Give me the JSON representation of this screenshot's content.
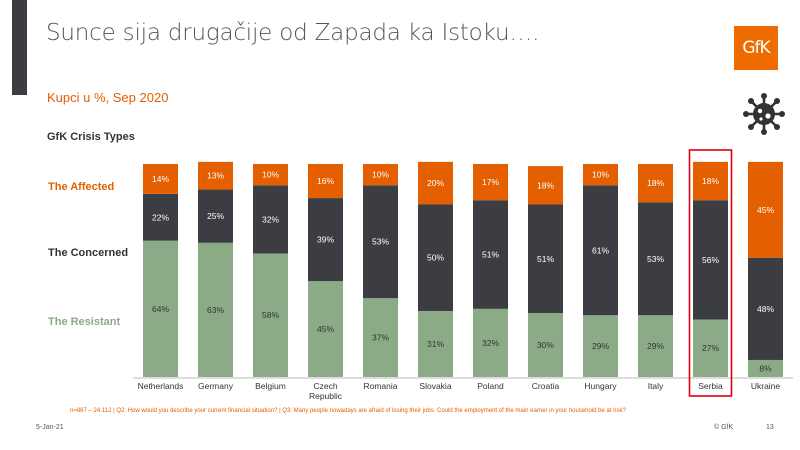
{
  "header": {
    "title": "Sunce sija drugačije od Zapada ka Istoku….",
    "logo_text": "GfK",
    "subtitle": "Kupci u %, Sep 2020",
    "section_label": "GfK Crisis Types"
  },
  "icons": {
    "logo": "gfk-logo",
    "virus": "virus-icon"
  },
  "colors": {
    "affected": "#e35f00",
    "concerned": "#3b3d42",
    "resistant": "#8aab86",
    "highlight": "#e0000f"
  },
  "chart_data": {
    "type": "bar",
    "stacked": true,
    "title": "GfK Crisis Types",
    "categories": [
      "Netherlands",
      "Germany",
      "Belgium",
      "Czech Republic",
      "Romania",
      "Slovakia",
      "Poland",
      "Croatia",
      "Hungary",
      "Italy",
      "Serbia",
      "Ukraine"
    ],
    "category_labels": [
      [
        "Netherlands"
      ],
      [
        "Germany"
      ],
      [
        "Belgium"
      ],
      [
        "Czech",
        "Republic"
      ],
      [
        "Romania"
      ],
      [
        "Slovakia"
      ],
      [
        "Poland"
      ],
      [
        "Croatia"
      ],
      [
        "Hungary"
      ],
      [
        "Italy"
      ],
      [
        "Serbia"
      ],
      [
        "Ukraine"
      ]
    ],
    "series": [
      {
        "name": "The Resistant",
        "color": "#8aab86",
        "values": [
          64,
          63,
          58,
          45,
          37,
          31,
          32,
          30,
          29,
          29,
          27,
          8
        ]
      },
      {
        "name": "The Concerned",
        "color": "#3b3d42",
        "values": [
          22,
          25,
          32,
          39,
          53,
          50,
          51,
          51,
          61,
          53,
          56,
          48
        ]
      },
      {
        "name": "The Affected",
        "color": "#e35f00",
        "values": [
          14,
          13,
          10,
          16,
          10,
          20,
          17,
          18,
          10,
          18,
          18,
          45
        ]
      }
    ],
    "unit": "%",
    "highlighted_category": "Serbia",
    "legend": "left"
  },
  "footer": {
    "note": "n=867 – 24.112 | Q2: How would you describe your current financial situation? | Q3: Many people nowadays are afraid of losing their jobs. Could the employment of the main earner in your household be at risk?",
    "date": "5-Jan-21",
    "copyright": "© GfK",
    "page": "13"
  }
}
